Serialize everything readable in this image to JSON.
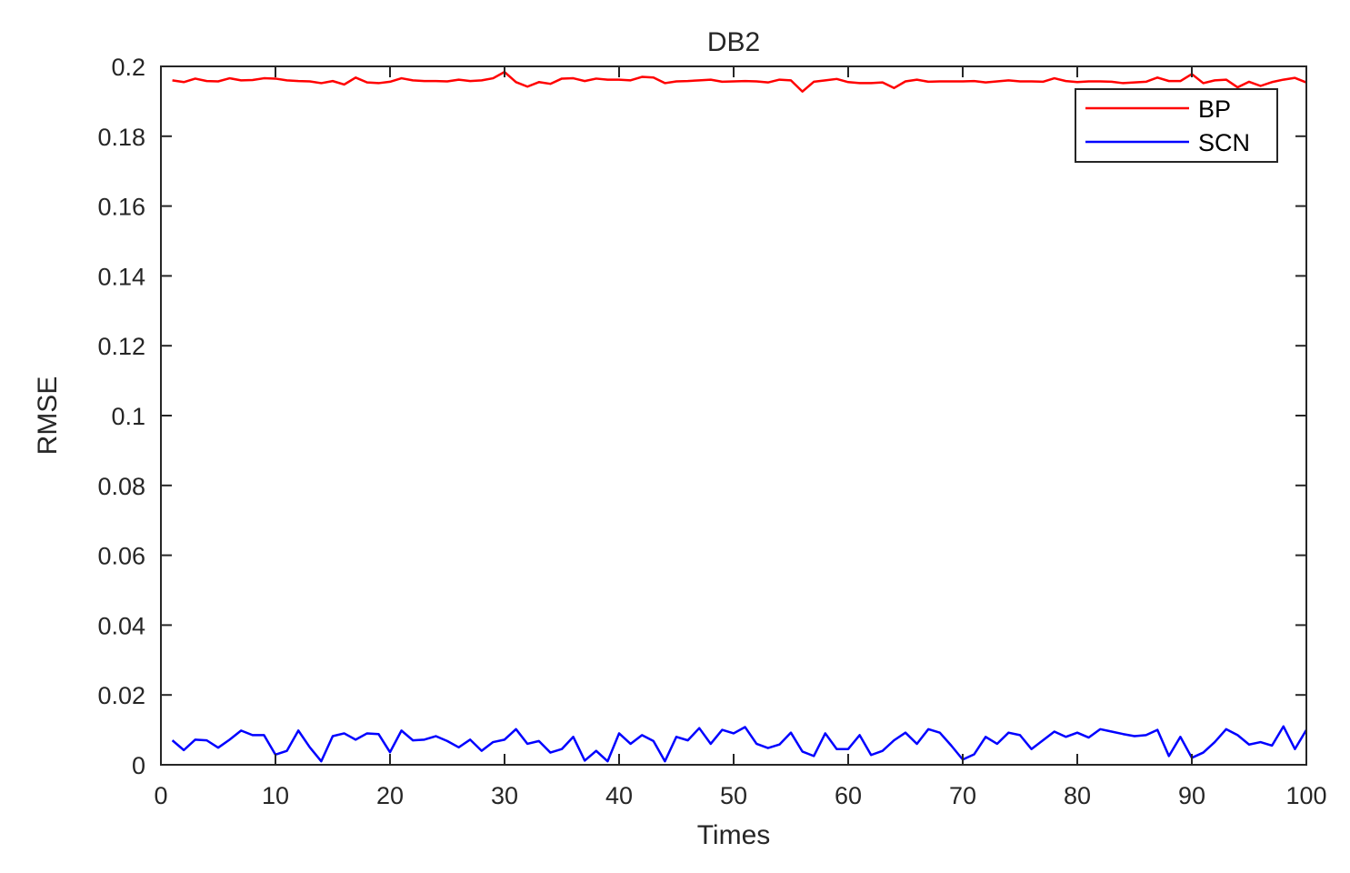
{
  "chart_data": {
    "type": "line",
    "title": "DB2",
    "xlabel": "Times",
    "ylabel": "RMSE",
    "xlim": [
      0,
      100
    ],
    "ylim": [
      0,
      0.2
    ],
    "xticks": [
      0,
      10,
      20,
      30,
      40,
      50,
      60,
      70,
      80,
      90,
      100
    ],
    "yticks": [
      0,
      0.02,
      0.04,
      0.06,
      0.08,
      0.1,
      0.12,
      0.14,
      0.16,
      0.18,
      0.2
    ],
    "xtick_labels": [
      "0",
      "10",
      "20",
      "30",
      "40",
      "50",
      "60",
      "70",
      "80",
      "90",
      "100"
    ],
    "ytick_labels": [
      "0",
      "0.02",
      "0.04",
      "0.06",
      "0.08",
      "0.1",
      "0.12",
      "0.14",
      "0.16",
      "0.18",
      "0.2"
    ],
    "grid": false,
    "legend_position": "top-right",
    "x": [
      1,
      2,
      3,
      4,
      5,
      6,
      7,
      8,
      9,
      10,
      11,
      12,
      13,
      14,
      15,
      16,
      17,
      18,
      19,
      20,
      21,
      22,
      23,
      24,
      25,
      26,
      27,
      28,
      29,
      30,
      31,
      32,
      33,
      34,
      35,
      36,
      37,
      38,
      39,
      40,
      41,
      42,
      43,
      44,
      45,
      46,
      47,
      48,
      49,
      50,
      51,
      52,
      53,
      54,
      55,
      56,
      57,
      58,
      59,
      60,
      61,
      62,
      63,
      64,
      65,
      66,
      67,
      68,
      69,
      70,
      71,
      72,
      73,
      74,
      75,
      76,
      77,
      78,
      79,
      80,
      81,
      82,
      83,
      84,
      85,
      86,
      87,
      88,
      89,
      90,
      91,
      92,
      93,
      94,
      95,
      96,
      97,
      98,
      99,
      100
    ],
    "series": [
      {
        "name": "BP",
        "color": "#ff0000",
        "values": [
          0.196,
          0.1955,
          0.1965,
          0.1958,
          0.1957,
          0.1966,
          0.196,
          0.1961,
          0.1966,
          0.1965,
          0.196,
          0.1958,
          0.1957,
          0.1952,
          0.1958,
          0.1948,
          0.1968,
          0.1954,
          0.1952,
          0.1956,
          0.1966,
          0.196,
          0.1958,
          0.1958,
          0.1957,
          0.1962,
          0.1958,
          0.196,
          0.1966,
          0.1984,
          0.1955,
          0.1942,
          0.1955,
          0.195,
          0.1965,
          0.1966,
          0.1958,
          0.1965,
          0.1962,
          0.1962,
          0.196,
          0.197,
          0.1968,
          0.1952,
          0.1957,
          0.1958,
          0.196,
          0.1962,
          0.1956,
          0.1957,
          0.1958,
          0.1957,
          0.1954,
          0.1962,
          0.196,
          0.1928,
          0.1956,
          0.196,
          0.1964,
          0.1955,
          0.1952,
          0.1952,
          0.1954,
          0.1938,
          0.1957,
          0.1962,
          0.1956,
          0.1957,
          0.1957,
          0.1957,
          0.1958,
          0.1954,
          0.1957,
          0.196,
          0.1957,
          0.1957,
          0.1956,
          0.1966,
          0.1958,
          0.1955,
          0.1957,
          0.1957,
          0.1956,
          0.1952,
          0.1954,
          0.1956,
          0.1968,
          0.1958,
          0.1958,
          0.1978,
          0.1952,
          0.196,
          0.1962,
          0.194,
          0.1956,
          0.1944,
          0.1955,
          0.1962,
          0.1967,
          0.1954
        ]
      },
      {
        "name": "SCN",
        "color": "#0000ff",
        "values": [
          0.007,
          0.0042,
          0.0072,
          0.007,
          0.0049,
          0.0072,
          0.0098,
          0.0085,
          0.0085,
          0.0029,
          0.004,
          0.0098,
          0.005,
          0.001,
          0.0082,
          0.009,
          0.0072,
          0.009,
          0.0088,
          0.0036,
          0.0098,
          0.007,
          0.0072,
          0.0082,
          0.0068,
          0.005,
          0.0072,
          0.004,
          0.0065,
          0.0072,
          0.0102,
          0.006,
          0.0068,
          0.0035,
          0.0045,
          0.008,
          0.0012,
          0.004,
          0.001,
          0.009,
          0.006,
          0.0085,
          0.0068,
          0.001,
          0.008,
          0.007,
          0.0105,
          0.006,
          0.01,
          0.009,
          0.0108,
          0.006,
          0.0048,
          0.0058,
          0.0092,
          0.0038,
          0.0025,
          0.009,
          0.0045,
          0.0045,
          0.0085,
          0.0028,
          0.004,
          0.007,
          0.0092,
          0.006,
          0.0102,
          0.0092,
          0.0055,
          0.0015,
          0.003,
          0.008,
          0.006,
          0.0092,
          0.0085,
          0.0045,
          0.007,
          0.0095,
          0.008,
          0.0092,
          0.0078,
          0.0102,
          0.0095,
          0.0088,
          0.0082,
          0.0085,
          0.01,
          0.0025,
          0.008,
          0.002,
          0.0035,
          0.0065,
          0.0102,
          0.0085,
          0.0058,
          0.0065,
          0.0055,
          0.011,
          0.0045,
          0.01
        ]
      }
    ]
  }
}
